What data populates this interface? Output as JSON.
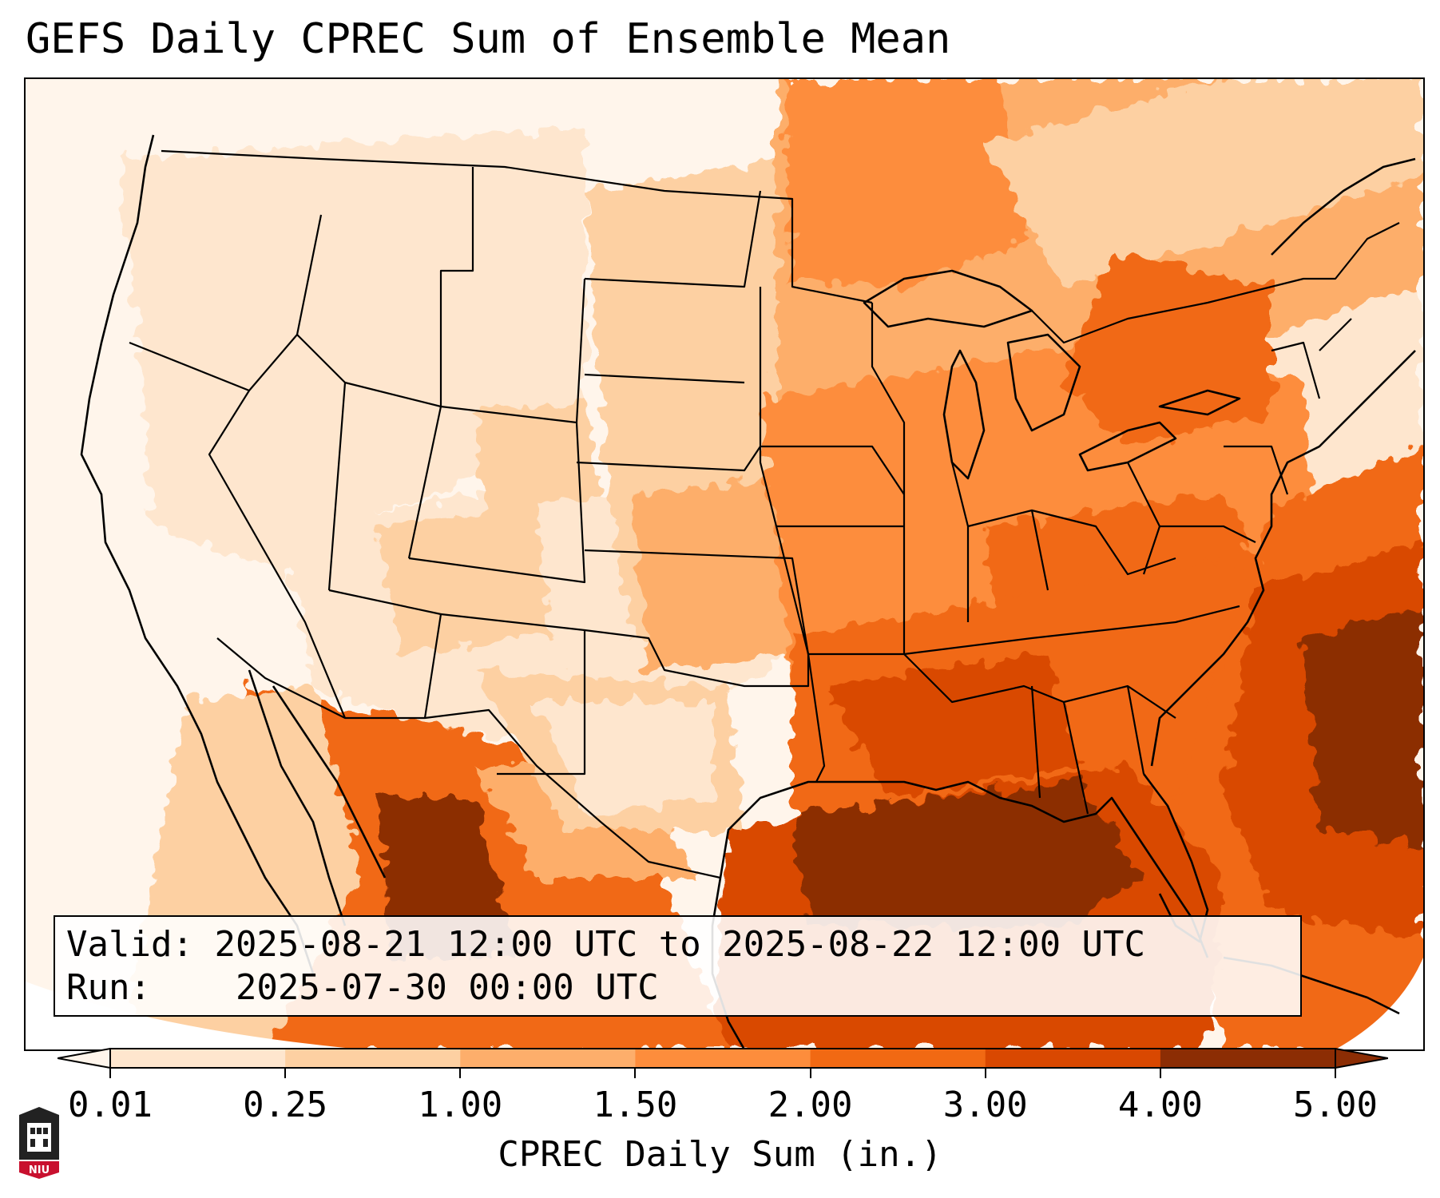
{
  "header": {
    "title": "GEFS Daily CPREC Sum of Ensemble Mean"
  },
  "info": {
    "valid_label": "Valid:",
    "valid_value": "2025-08-21 12:00 UTC to 2025-08-22 12:00 UTC",
    "run_label": "Run:",
    "run_value": "2025-07-30 00:00 UTC"
  },
  "colorbar": {
    "label": "CPREC Daily Sum (in.)",
    "ticks": [
      "0.01",
      "0.25",
      "1.00",
      "1.50",
      "2.00",
      "3.00",
      "4.00",
      "5.00"
    ],
    "colors": [
      "#fff5eb",
      "#fee6ce",
      "#fdd0a2",
      "#fdae6b",
      "#fd8d3c",
      "#f16913",
      "#d94801",
      "#8c2d04"
    ],
    "extend": "both"
  },
  "map": {
    "projection": "Lambert Conformal",
    "region": "Contiguous United States",
    "overlays": [
      "state-borders",
      "coastlines",
      "country-borders"
    ]
  },
  "logo": {
    "text": "NIU",
    "accent": "#c8102e"
  }
}
